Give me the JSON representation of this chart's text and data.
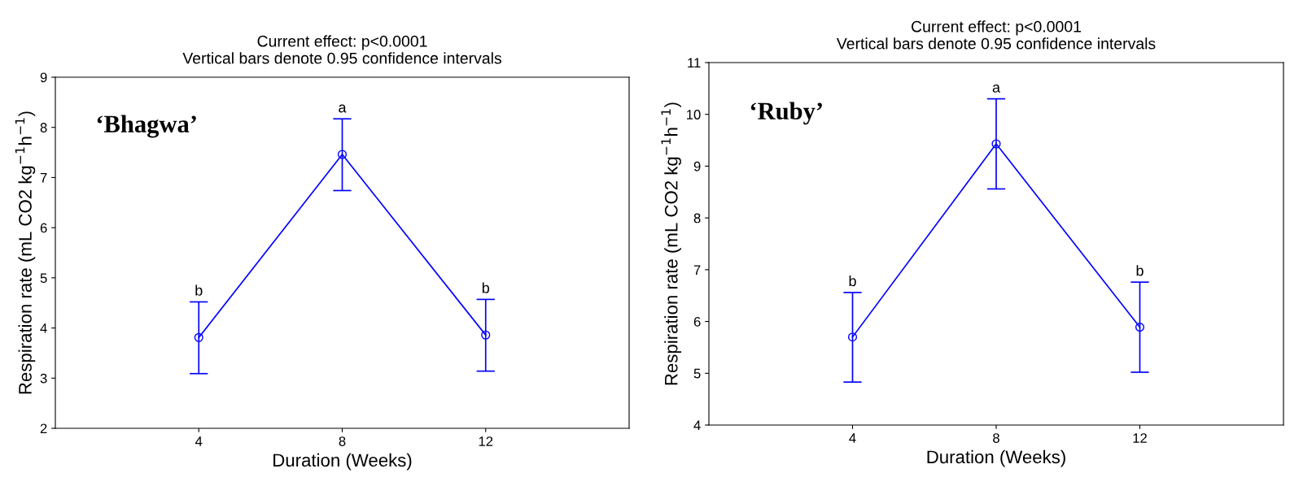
{
  "chart_data": [
    {
      "type": "line",
      "title": "Current effect: p<0.0001",
      "subtitle": "Vertical bars denote 0.95 confidence intervals",
      "xlabel": "Duration (Weeks)",
      "ylabel": "Respiration rate (mL CO2 kg$^{−1}$h$^{−1}$)",
      "x": [
        4,
        8,
        12
      ],
      "xlim": [
        0,
        16
      ],
      "xticks": [
        4,
        8,
        12
      ],
      "ylim": [
        2,
        9
      ],
      "yticks": [
        2,
        3,
        4,
        5,
        6,
        7,
        8,
        9
      ],
      "series": [
        {
          "color": "#0000ff",
          "values": [
            3.81,
            7.46,
            3.86
          ],
          "errors": [
            [
              3.09,
              4.52
            ],
            [
              6.74,
              8.17
            ],
            [
              3.14,
              4.57
            ]
          ]
        }
      ],
      "marker": "circle",
      "line_style": "solid",
      "grid": false,
      "legend": false,
      "annotations": [
        "‘Bhagwa’",
        {
          "text": "b",
          "x": 4,
          "y": 4.52
        },
        {
          "text": "a",
          "x": 8,
          "y": 8.17
        },
        {
          "text": "b",
          "x": 12,
          "y": 4.57
        }
      ]
    },
    {
      "type": "line",
      "title": "Current effect: p<0.0001",
      "subtitle": "Vertical bars denote 0.95 confidence intervals",
      "xlabel": "Duration (Weeks)",
      "ylabel": "Respiration rate (mL CO2 kg$^{−1}$h$^{−1}$)",
      "x": [
        4,
        8,
        12
      ],
      "xlim": [
        0,
        16
      ],
      "xticks": [
        4,
        8,
        12
      ],
      "ylim": [
        4,
        11
      ],
      "yticks": [
        4,
        5,
        6,
        7,
        8,
        9,
        10,
        11
      ],
      "series": [
        {
          "color": "#0000ff",
          "values": [
            5.7,
            9.43,
            5.89
          ],
          "errors": [
            [
              4.83,
              6.56
            ],
            [
              8.56,
              10.3
            ],
            [
              5.02,
              6.76
            ]
          ]
        }
      ],
      "marker": "circle",
      "line_style": "solid",
      "grid": false,
      "legend": false,
      "annotations": [
        "‘Ruby’",
        {
          "text": "b",
          "x": 4,
          "y": 6.56
        },
        {
          "text": "a",
          "x": 8,
          "y": 10.3
        },
        {
          "text": "b",
          "x": 12,
          "y": 6.76
        }
      ]
    }
  ]
}
